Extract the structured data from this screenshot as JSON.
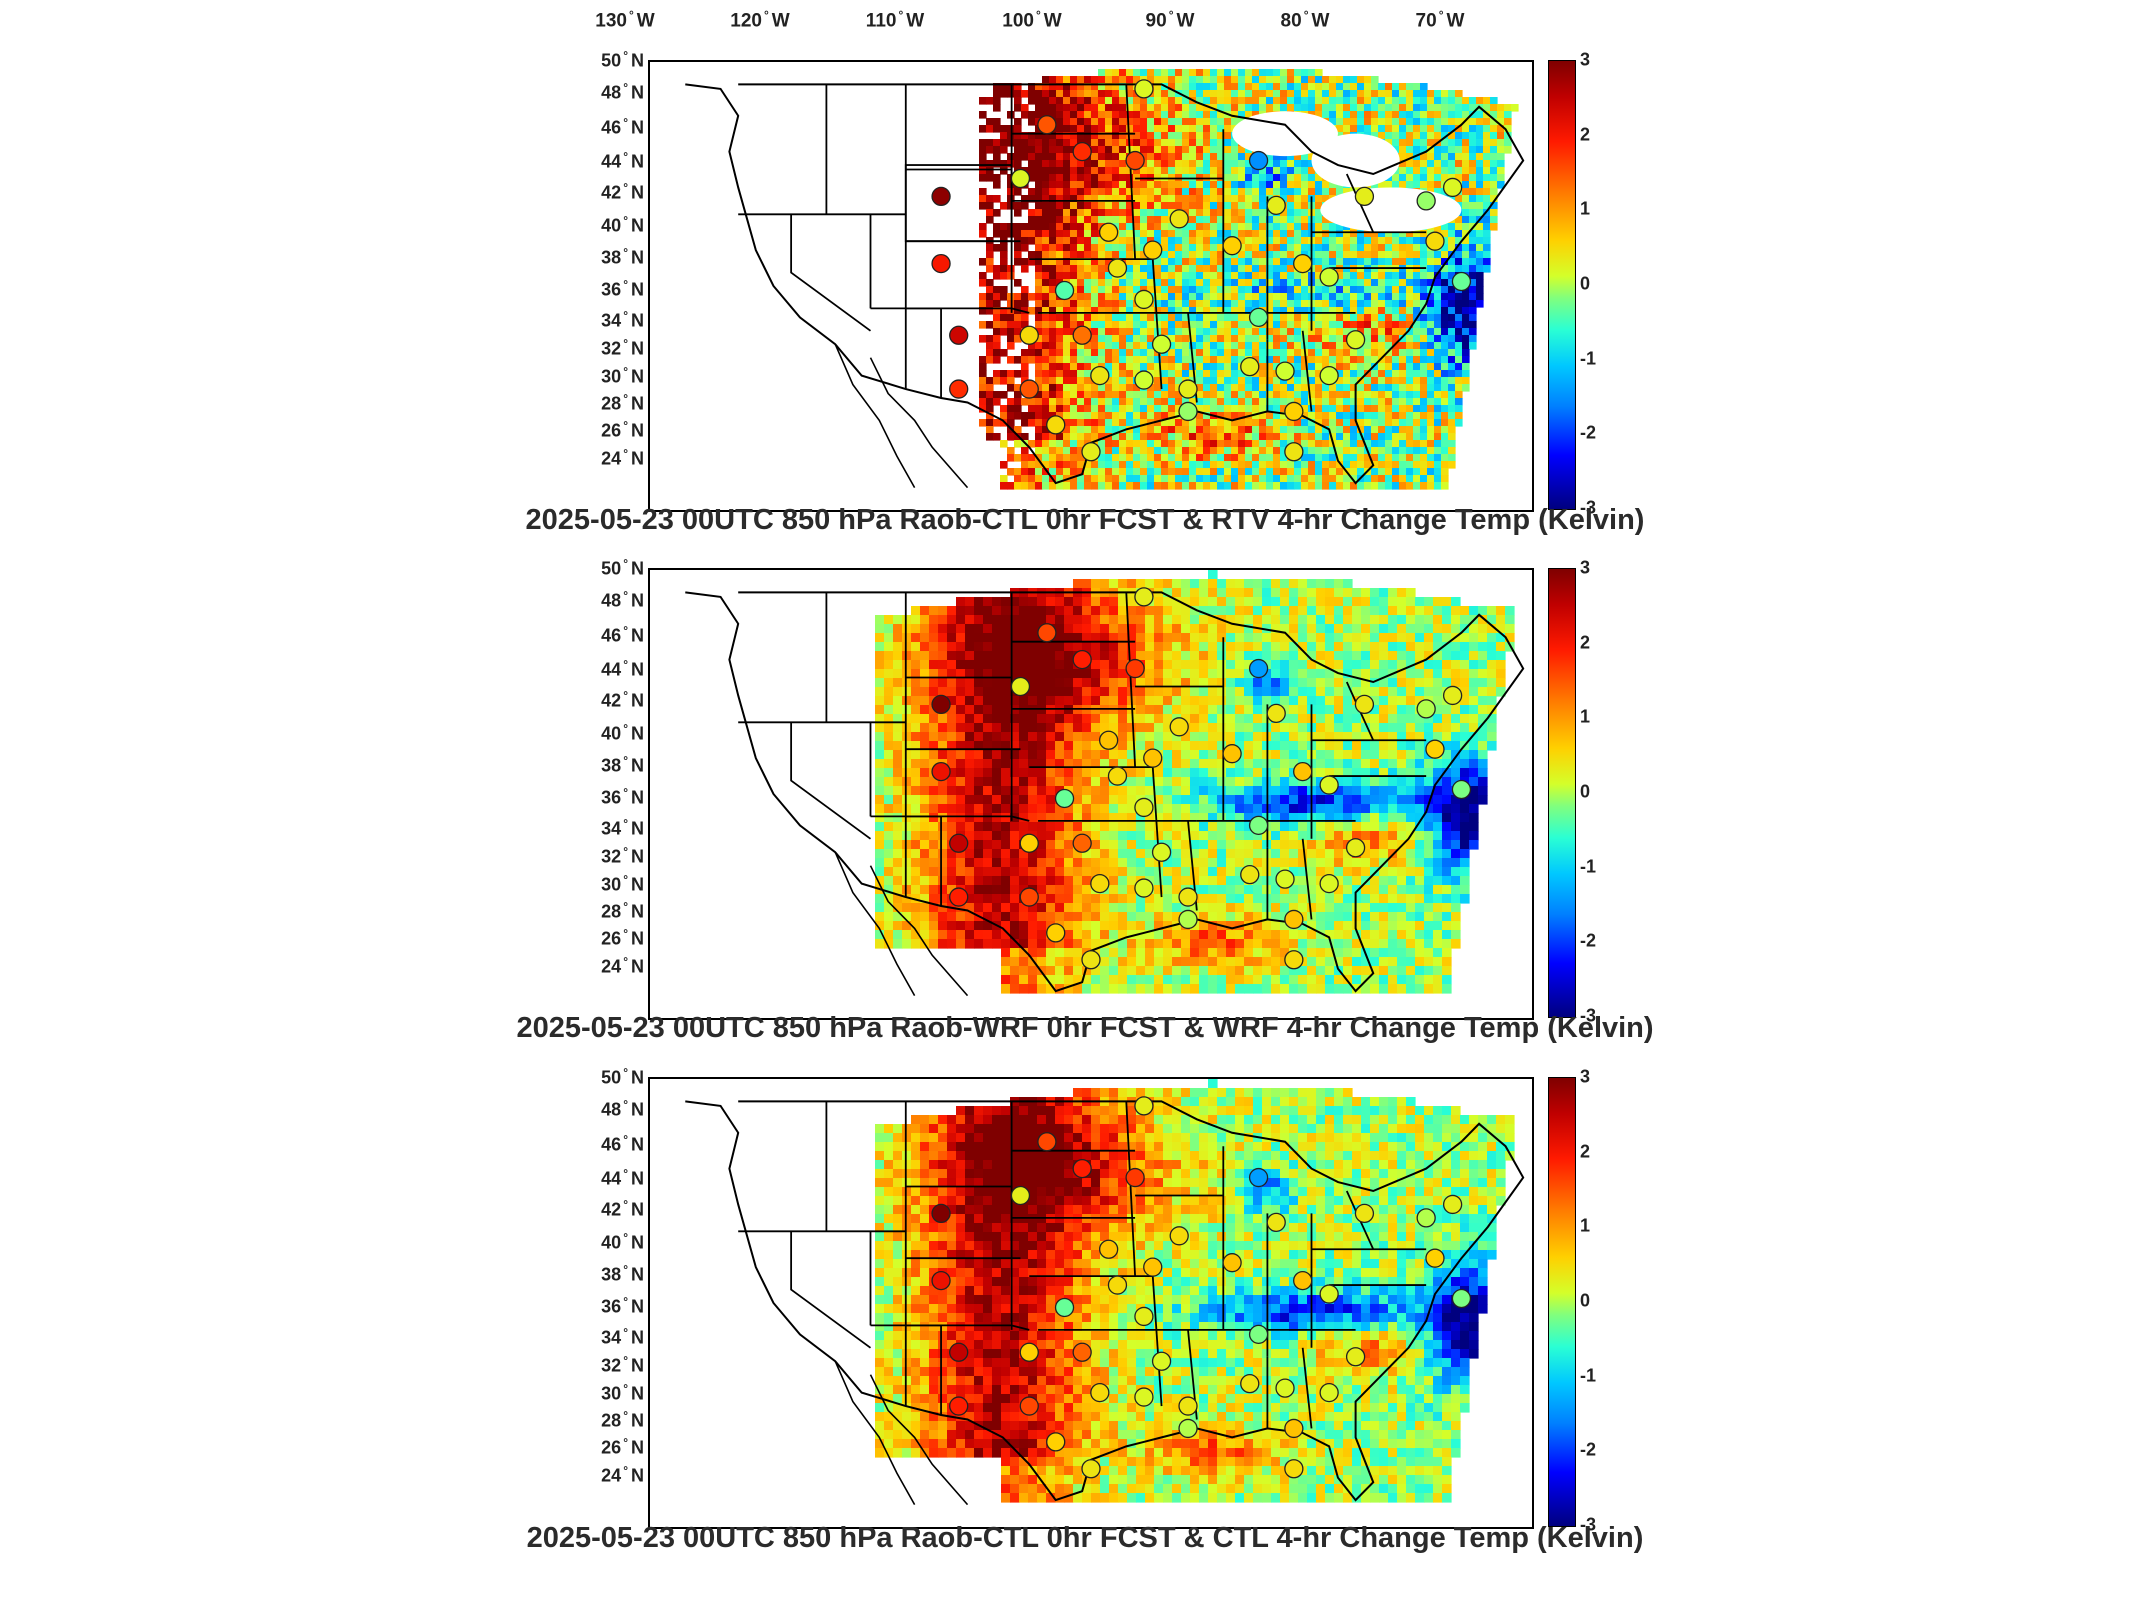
{
  "longitude_labels": [
    {
      "deg": "130",
      "hemi": "W"
    },
    {
      "deg": "120",
      "hemi": "W"
    },
    {
      "deg": "110",
      "hemi": "W"
    },
    {
      "deg": "100",
      "hemi": "W"
    },
    {
      "deg": "90",
      "hemi": "W"
    },
    {
      "deg": "80",
      "hemi": "W"
    },
    {
      "deg": "70",
      "hemi": "W"
    }
  ],
  "latitude_labels": [
    {
      "deg": "50",
      "hemi": "N"
    },
    {
      "deg": "48",
      "hemi": "N"
    },
    {
      "deg": "46",
      "hemi": "N"
    },
    {
      "deg": "44",
      "hemi": "N"
    },
    {
      "deg": "42",
      "hemi": "N"
    },
    {
      "deg": "40",
      "hemi": "N"
    },
    {
      "deg": "38",
      "hemi": "N"
    },
    {
      "deg": "36",
      "hemi": "N"
    },
    {
      "deg": "34",
      "hemi": "N"
    },
    {
      "deg": "32",
      "hemi": "N"
    },
    {
      "deg": "30",
      "hemi": "N"
    },
    {
      "deg": "28",
      "hemi": "N"
    },
    {
      "deg": "26",
      "hemi": "N"
    },
    {
      "deg": "24",
      "hemi": "N"
    }
  ],
  "colorbar": {
    "ticks": [
      "3",
      "2",
      "1",
      "0",
      "-1",
      "-2",
      "-3"
    ],
    "range": [
      -3,
      3
    ],
    "colormap": "jet"
  },
  "panels": [
    {
      "title": "2025-05-23 00UTC 850 hPa Raob-CTL 0hr FCST & RTV 4-hr Change Temp (Kelvin)",
      "field_style": "speckled"
    },
    {
      "title": "2025-05-23 00UTC 850 hPa Raob-WRF 0hr FCST & WRF 4-hr Change Temp (Kelvin)",
      "field_style": "smooth"
    },
    {
      "title": "2025-05-23 00UTC 850 hPa Raob-CTL 0hr FCST & CTL 4-hr Change Temp (Kelvin)",
      "field_style": "smooth"
    }
  ],
  "colors": {
    "map_border": "#000000",
    "state_lines": "#000000",
    "title_text": "#2b2b2b",
    "warm": "#ff1a00",
    "cold": "#0000ff"
  }
}
